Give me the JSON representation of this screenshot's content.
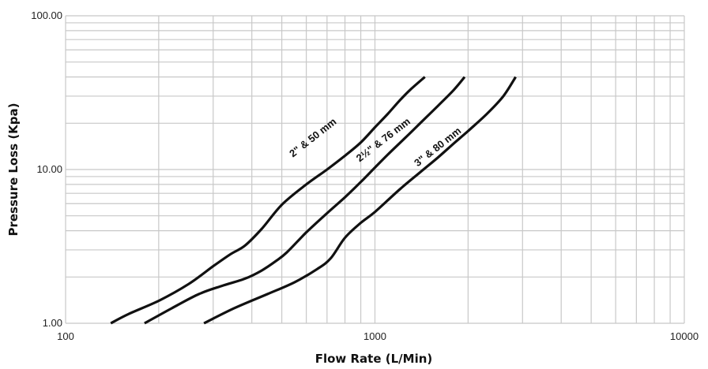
{
  "chart_data": {
    "type": "line",
    "xscale": "log",
    "yscale": "log",
    "xlim": [
      100,
      10000
    ],
    "ylim": [
      1,
      100
    ],
    "xlabel": "Flow Rate (L/Min)",
    "ylabel": "Pressure Loss (Kpa)",
    "grid": true,
    "x_ticks": [
      "100",
      "1000",
      "10000"
    ],
    "y_ticks": [
      "1.00",
      "10.00",
      "100.00"
    ],
    "x_tick_values": [
      100,
      1000,
      10000
    ],
    "y_tick_values": [
      1,
      10,
      100
    ],
    "series": [
      {
        "name": "2\" & 50 mm",
        "label_at": {
          "x": 640,
          "y": 15.5
        },
        "x": [
          140,
          160,
          200,
          250,
          300,
          340,
          380,
          430,
          500,
          600,
          700,
          800,
          900,
          1000,
          1100,
          1200,
          1300,
          1450
        ],
        "y": [
          1.0,
          1.15,
          1.4,
          1.8,
          2.35,
          2.8,
          3.2,
          4.1,
          5.9,
          8.0,
          10.0,
          12.3,
          15.0,
          18.8,
          23.0,
          28.0,
          33.0,
          40.0
        ]
      },
      {
        "name": "2½\" & 76 mm",
        "label_at": {
          "x": 1080,
          "y": 15.0
        },
        "x": [
          180,
          220,
          270,
          320,
          380,
          430,
          480,
          520,
          600,
          700,
          800,
          900,
          1000,
          1100,
          1250,
          1400,
          1600,
          1800,
          1950
        ],
        "y": [
          1.0,
          1.25,
          1.55,
          1.75,
          1.95,
          2.2,
          2.55,
          2.9,
          3.9,
          5.2,
          6.6,
          8.3,
          10.3,
          12.5,
          16.0,
          20.0,
          26.0,
          33.0,
          40.0
        ]
      },
      {
        "name": "3\" & 80 mm",
        "label_at": {
          "x": 1620,
          "y": 13.5
        },
        "x": [
          280,
          350,
          450,
          550,
          650,
          720,
          800,
          900,
          1000,
          1200,
          1400,
          1600,
          1800,
          2000,
          2300,
          2600,
          2850
        ],
        "y": [
          1.0,
          1.25,
          1.55,
          1.85,
          2.25,
          2.65,
          3.6,
          4.5,
          5.3,
          7.4,
          9.6,
          12.0,
          14.8,
          17.8,
          23.0,
          30.0,
          40.0
        ]
      }
    ]
  }
}
